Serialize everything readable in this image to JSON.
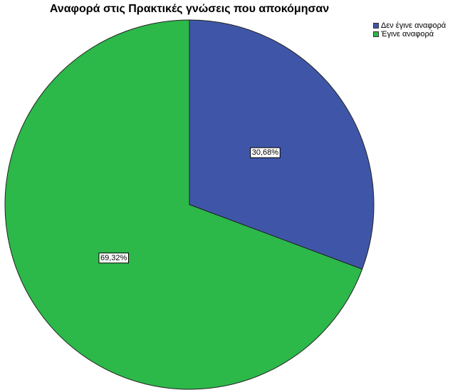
{
  "chart_data": {
    "type": "pie",
    "title": "Αναφορά στις Πρακτικές γνώσεις που αποκόμησαν",
    "categories": [
      "Δεν έγινε αναφορά",
      "Έγινε αναφορά"
    ],
    "values": [
      30.68,
      69.32
    ],
    "labels": [
      "30,68%",
      "69,32%"
    ],
    "colors": [
      "#3f56a8",
      "#2db84a"
    ],
    "start_angle_deg": 0,
    "direction": "clockwise",
    "legend_position": "top-right"
  }
}
